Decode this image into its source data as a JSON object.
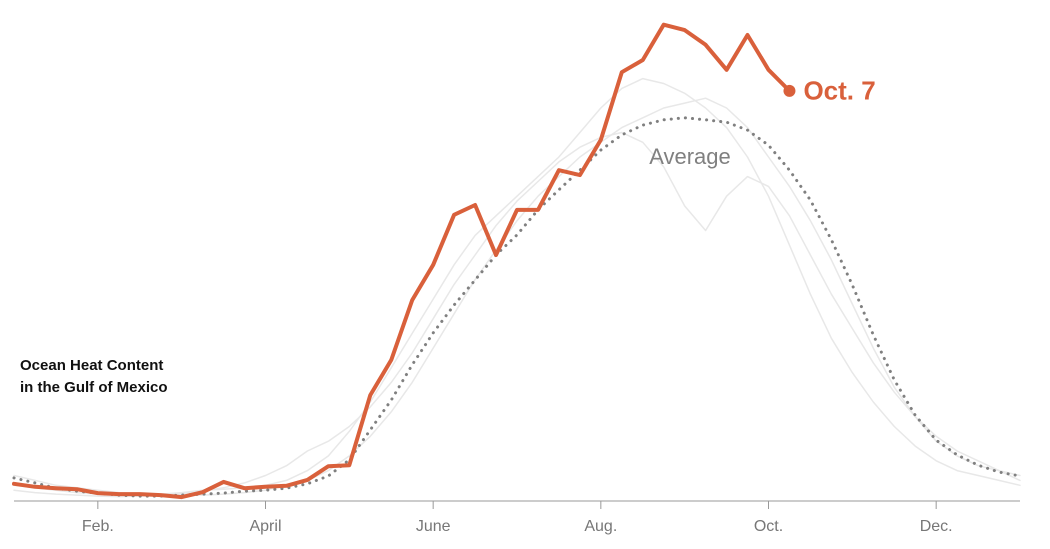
{
  "chart_data": {
    "type": "line",
    "title": [
      "Ocean Heat Content",
      "in the Gulf of Mexico"
    ],
    "categories": [
      null,
      null,
      null,
      null,
      "Feb.",
      null,
      null,
      null,
      null,
      null,
      null,
      null,
      "April",
      null,
      null,
      null,
      null,
      null,
      null,
      null,
      "June",
      null,
      null,
      null,
      null,
      null,
      null,
      null,
      "Aug.",
      null,
      null,
      null,
      null,
      null,
      null,
      null,
      "Oct.",
      null,
      null,
      null,
      null,
      null,
      null,
      null,
      "Dec.",
      null,
      null,
      null,
      null
    ],
    "ylim": [
      0,
      100
    ],
    "series": [
      {
        "color": "#e8e8e8",
        "values": [
          3,
          2.5,
          2,
          1.5,
          1.2,
          1,
          1,
          1.2,
          1.5,
          2,
          2.2,
          2.5,
          3,
          4,
          6,
          9,
          14,
          20,
          27,
          34,
          41,
          48,
          54,
          58,
          62,
          66,
          70,
          75,
          80,
          84,
          86,
          85,
          83,
          80,
          76,
          70,
          62,
          52,
          42,
          33,
          26,
          20,
          15,
          11,
          8,
          6,
          5,
          4,
          3
        ]
      },
      {
        "color": "#e8e8e8",
        "values": [
          5,
          4,
          3,
          2.5,
          2,
          1.5,
          1.2,
          1,
          1,
          1,
          1.2,
          1.5,
          2,
          3,
          4,
          6,
          9,
          13,
          18,
          24,
          31,
          38,
          45,
          51,
          57,
          62,
          66,
          70,
          73,
          76,
          78,
          80,
          81,
          82,
          80,
          76,
          70,
          64,
          57,
          49,
          40,
          31,
          23,
          17,
          12,
          9,
          7,
          6,
          5
        ]
      },
      {
        "color": "#e8e8e8",
        "values": [
          2,
          1.5,
          1.2,
          1,
          0.8,
          0.7,
          0.8,
          1,
          1.3,
          1.8,
          2.5,
          3.5,
          5,
          7,
          10,
          12,
          15,
          19,
          24,
          30,
          37,
          44,
          50,
          56,
          61,
          65,
          69,
          72,
          74,
          75,
          73,
          68,
          60,
          55,
          62,
          66,
          64,
          58,
          50,
          42,
          35,
          28,
          22,
          17,
          13,
          10,
          8,
          6,
          4
        ]
      },
      {
        "name": "Average",
        "color": "#808080",
        "dashed": true,
        "values": [
          4.5,
          3.5,
          2.4,
          1.8,
          1.4,
          1,
          0.8,
          0.8,
          1,
          1.2,
          1.4,
          1.8,
          2,
          2.4,
          3.3,
          4.9,
          8.2,
          14.3,
          20.4,
          27.6,
          34.1,
          39.8,
          44.9,
          50,
          54.1,
          59.2,
          63.3,
          67.3,
          71.4,
          74.5,
          76.5,
          77.6,
          78,
          77.6,
          77.1,
          75.5,
          72.4,
          67.3,
          61.2,
          53.1,
          43.9,
          33.7,
          24.5,
          17.3,
          12.2,
          9.2,
          7.1,
          5.7,
          4.9
        ]
      },
      {
        "name": "Oct. 7",
        "color": "#d9603b",
        "values": [
          3.3,
          2.7,
          2.4,
          2.2,
          1.4,
          1.2,
          1.2,
          1,
          0.6,
          1.6,
          3.7,
          2.4,
          2.7,
          2.9,
          4.1,
          6.9,
          7.1,
          21.4,
          28.6,
          40.8,
          48,
          58.2,
          60.2,
          50,
          59.2,
          59.2,
          67.3,
          66.3,
          73.5,
          87.3,
          89.8,
          97,
          95.9,
          92.9,
          87.8,
          94.9,
          87.8,
          83.5,
          null,
          null,
          null,
          null,
          null,
          null,
          null,
          null,
          null,
          null,
          null
        ]
      }
    ]
  }
}
